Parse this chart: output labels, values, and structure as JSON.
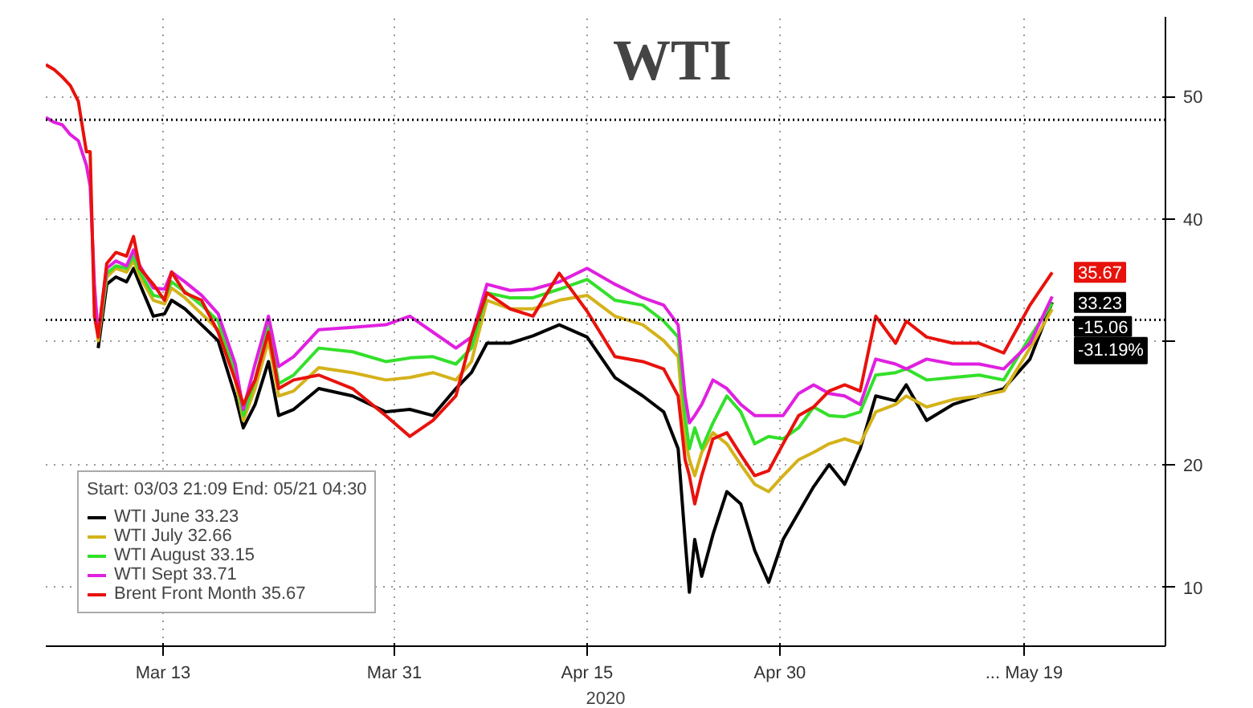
{
  "chart_data": {
    "type": "line",
    "title": "WTI",
    "xlabel": "2020",
    "legend_title": "Start: 03/03 21:09 End: 05/21 04:30",
    "x": [
      "2020-03-03T21:09",
      "2020-03-04T13:00",
      "2020-03-05T04:00",
      "2020-03-05T19:00",
      "2020-03-06T10:00",
      "2020-03-07T01:00",
      "2020-03-07T08:00",
      "2020-03-07T16:00",
      "2020-03-07T23:00",
      "2020-03-08T15:00",
      "2020-03-09T08:00",
      "2020-03-10T04:00",
      "2020-03-10T17:00",
      "2020-03-11T05:00",
      "2020-03-12T06:00",
      "2020-03-13T03:00",
      "2020-03-13T16:00",
      "2020-03-14T17:00",
      "2020-03-16T00:00",
      "2020-03-17T07:00",
      "2020-03-18T15:00",
      "2020-03-19T06:00",
      "2020-03-20T04:00",
      "2020-03-21T05:00",
      "2020-03-22T00:00",
      "2020-03-23T04:00",
      "2020-03-25T03:00",
      "2020-03-27T18:00",
      "2020-03-30T08:00",
      "2020-04-01T05:00",
      "2020-04-03T00:00",
      "2020-04-04T19:00",
      "2020-04-06T00:00",
      "2020-04-07T05:00",
      "2020-04-09T00:00",
      "2020-04-10T19:00",
      "2020-04-12T20:00",
      "2020-04-15T00:00",
      "2020-04-17T04:00",
      "2020-04-19T08:00",
      "2020-04-20T23:00",
      "2020-04-22T02:00",
      "2020-04-22T15:00",
      "2020-04-22T23:00",
      "2020-04-23T09:00",
      "2020-04-23T22:00",
      "2020-04-24T19:00",
      "2020-04-25T21:00",
      "2020-04-26T23:00",
      "2020-04-28T01:00",
      "2020-04-29T03:00",
      "2020-04-30T06:00",
      "2020-05-01T11:00",
      "2020-05-02T15:00",
      "2020-05-03T20:00",
      "2020-05-05T01:00",
      "2020-05-06T06:00",
      "2020-05-07T11:00",
      "2020-05-09T00:00",
      "2020-05-09T20:00",
      "2020-05-11T10:00",
      "2020-05-13T11:00",
      "2020-05-15T12:00",
      "2020-05-17T10:00",
      "2020-05-19T11:00",
      "2020-05-21T04:30"
    ],
    "series": [
      {
        "name": "WTI June 33.23",
        "color": "#000000",
        "values": [
          null,
          null,
          null,
          null,
          null,
          null,
          null,
          null,
          29.5,
          34.7,
          35.3,
          34.9,
          36.0,
          34.7,
          32.1,
          32.3,
          33.4,
          32.7,
          31.4,
          30.1,
          25.6,
          23.0,
          24.9,
          28.4,
          24.0,
          24.5,
          26.2,
          25.6,
          24.3,
          24.5,
          24.0,
          26.2,
          27.5,
          29.9,
          29.9,
          30.5,
          31.4,
          30.4,
          27.1,
          25.6,
          24.3,
          21.3,
          13.9,
          9.6,
          13.9,
          10.9,
          14.3,
          17.8,
          16.8,
          13.0,
          10.4,
          13.9,
          16.1,
          18.2,
          20.0,
          18.4,
          21.3,
          25.6,
          25.2,
          26.5,
          23.6,
          24.9,
          25.6,
          26.2,
          28.6,
          33.23
        ],
        "value_labels": [
          null,
          null,
          null,
          null,
          null,
          null,
          null,
          null,
          null,
          null,
          null,
          null,
          null,
          null,
          null,
          null,
          null,
          null,
          null,
          null,
          null,
          null,
          null,
          null,
          null,
          null,
          null,
          null,
          null,
          null,
          null,
          null,
          null,
          null,
          null,
          null,
          null,
          null,
          null,
          null,
          null,
          null,
          null,
          null,
          null,
          null,
          null,
          null,
          null,
          null,
          null,
          null,
          null,
          null,
          null,
          null,
          null,
          null,
          null,
          null,
          null,
          null,
          null,
          null,
          null,
          "33.23"
        ]
      },
      {
        "name": "WTI July 32.66",
        "color": "#d4b21a",
        "values": [
          null,
          null,
          null,
          null,
          null,
          null,
          null,
          34.3,
          30.1,
          35.3,
          36.0,
          35.7,
          36.6,
          35.3,
          33.4,
          33.1,
          34.4,
          33.6,
          32.3,
          31.0,
          26.9,
          23.6,
          26.2,
          30.1,
          25.6,
          26.0,
          27.9,
          27.5,
          26.9,
          27.1,
          27.5,
          26.9,
          28.4,
          33.4,
          32.7,
          32.7,
          33.4,
          33.8,
          32.1,
          31.4,
          30.1,
          28.8,
          22.1,
          20.4,
          19.1,
          21.0,
          22.6,
          21.7,
          20.0,
          18.4,
          17.8,
          19.1,
          20.4,
          21.0,
          21.7,
          22.1,
          21.7,
          24.3,
          24.9,
          25.6,
          24.7,
          25.3,
          25.6,
          26.0,
          29.5,
          32.66
        ]
      },
      {
        "name": "WTI August 33.15",
        "color": "#33e02a",
        "values": [
          null,
          null,
          null,
          null,
          null,
          null,
          null,
          null,
          30.4,
          35.6,
          36.2,
          36.0,
          37.0,
          35.7,
          33.8,
          33.6,
          34.9,
          34.1,
          33.0,
          31.7,
          27.5,
          24.0,
          26.9,
          31.4,
          26.6,
          27.3,
          29.5,
          29.2,
          28.4,
          28.7,
          28.8,
          28.2,
          29.5,
          34.0,
          33.6,
          33.6,
          34.3,
          35.1,
          33.4,
          33.0,
          31.7,
          30.4,
          23.9,
          21.3,
          23.0,
          21.3,
          23.4,
          25.6,
          24.3,
          21.7,
          22.3,
          22.1,
          23.0,
          24.7,
          24.0,
          23.9,
          24.3,
          27.3,
          27.5,
          27.8,
          26.9,
          27.1,
          27.3,
          26.9,
          30.4,
          33.15
        ]
      },
      {
        "name": "WTI Sept 33.71",
        "color": "#e020e0",
        "values": [
          48.3,
          47.9,
          47.7,
          46.9,
          46.4,
          44.4,
          42.7,
          34.7,
          30.5,
          36.0,
          36.6,
          36.2,
          37.5,
          36.2,
          34.4,
          34.3,
          35.7,
          34.9,
          33.8,
          32.3,
          28.2,
          24.5,
          28.2,
          32.1,
          28.0,
          28.8,
          31.0,
          31.2,
          31.4,
          32.1,
          30.8,
          29.5,
          30.4,
          34.7,
          34.2,
          34.3,
          34.9,
          36.0,
          34.7,
          33.6,
          33.0,
          31.4,
          25.6,
          23.4,
          24.0,
          24.9,
          26.9,
          26.2,
          24.9,
          24.0,
          24.0,
          24.0,
          25.8,
          26.5,
          25.8,
          25.6,
          24.9,
          28.6,
          28.2,
          27.8,
          28.6,
          28.2,
          28.2,
          27.8,
          29.9,
          33.71
        ]
      },
      {
        "name": "Brent Front Month 35.67",
        "color": "#e8120c",
        "values": [
          52.6,
          52.2,
          51.6,
          50.9,
          49.6,
          45.5,
          45.5,
          32.1,
          30.4,
          36.4,
          37.3,
          37.0,
          38.6,
          36.0,
          34.7,
          33.4,
          35.7,
          34.0,
          33.4,
          30.8,
          26.9,
          24.9,
          26.9,
          30.8,
          26.2,
          26.9,
          27.3,
          26.2,
          24.0,
          22.3,
          23.6,
          25.6,
          30.4,
          34.0,
          32.7,
          32.1,
          35.6,
          32.5,
          28.8,
          28.4,
          27.8,
          25.6,
          20.4,
          19.1,
          16.8,
          19.1,
          22.1,
          22.6,
          20.8,
          19.1,
          19.5,
          21.7,
          24.0,
          24.7,
          26.0,
          26.5,
          26.0,
          32.1,
          29.9,
          31.7,
          30.4,
          29.9,
          29.9,
          29.1,
          33.0,
          35.67
        ],
        "value_labels": [
          null,
          null,
          null,
          null,
          null,
          null,
          null,
          null,
          null,
          null,
          null,
          null,
          null,
          null,
          null,
          null,
          null,
          null,
          null,
          null,
          null,
          null,
          null,
          null,
          null,
          null,
          null,
          null,
          null,
          null,
          null,
          null,
          null,
          null,
          null,
          null,
          null,
          null,
          null,
          null,
          null,
          null,
          null,
          null,
          null,
          null,
          null,
          null,
          null,
          null,
          null,
          null,
          null,
          null,
          null,
          null,
          null,
          null,
          null,
          null,
          null,
          null,
          null,
          null,
          null,
          "35.67"
        ]
      }
    ],
    "xlim": [
      "2020-03-03T21:09",
      "2020-05-30T00:00"
    ],
    "xticks": [
      {
        "value": "2020-03-13",
        "label": "Mar 13"
      },
      {
        "value": "2020-03-31",
        "label": "Mar 31"
      },
      {
        "value": "2020-04-15",
        "label": "Apr 15"
      },
      {
        "value": "2020-04-30",
        "label": "Apr 30"
      },
      {
        "value": "2020-05-19",
        "label": "... May 19"
      }
    ],
    "ylim": [
      5.2,
      56.5
    ],
    "yticks": [
      10,
      20,
      {
        "value": 30,
        "label": null
      },
      40,
      50
    ],
    "ref_lines": [
      {
        "axis": "y",
        "value": 48.1,
        "color": "#000000",
        "line_style": "dotted"
      },
      {
        "axis": "y",
        "value": 31.8,
        "color": "#000000",
        "line_style": "dotted"
      }
    ],
    "annotations": [
      "-15.06",
      "-31.19%"
    ],
    "grid": true,
    "legend": "bottom left",
    "line_style": "solid"
  }
}
